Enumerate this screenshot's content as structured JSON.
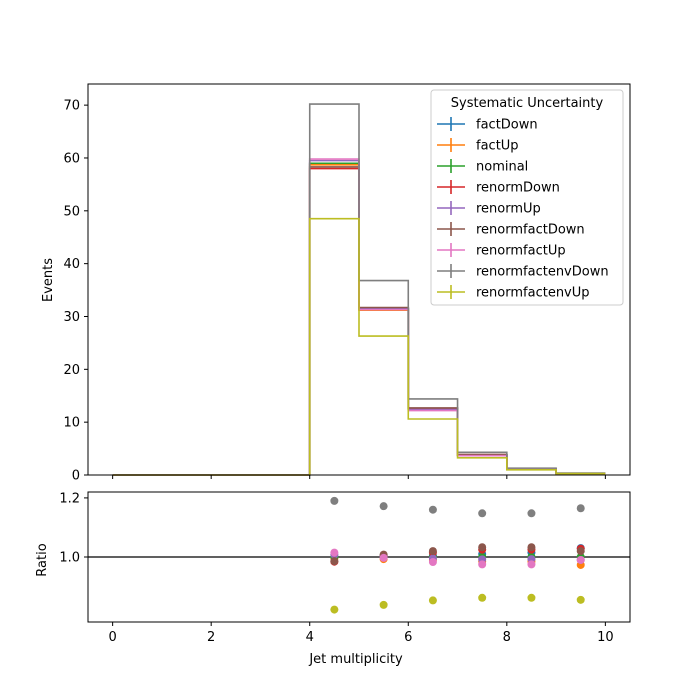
{
  "chart_data": [
    {
      "type": "step-histogram",
      "title": "",
      "xlabel": "",
      "ylabel": "Events",
      "xlim": [
        -0.5,
        10.5
      ],
      "ylim": [
        0,
        74
      ],
      "x_ticks": [
        0,
        2,
        4,
        6,
        8,
        10
      ],
      "y_ticks": [
        0,
        10,
        20,
        30,
        40,
        50,
        60,
        70
      ],
      "bin_edges": [
        0,
        1,
        2,
        3,
        4,
        5,
        6,
        7,
        8,
        9,
        10
      ],
      "legend": {
        "title": "Systematic Uncertainty",
        "position": "upper-right"
      },
      "draw_order": [
        "factDown",
        "factUp",
        "nominal",
        "renormDown",
        "renormUp",
        "renormfactDown",
        "renormfactUp",
        "renormfactenvDown",
        "renormfactenvUp"
      ],
      "series": [
        {
          "name": "factDown",
          "color": "#1f77b4",
          "values": [
            0,
            0,
            0,
            0,
            59.0,
            31.6,
            12.6,
            3.8,
            1.15,
            0.32
          ]
        },
        {
          "name": "factUp",
          "color": "#ff7f0e",
          "values": [
            0,
            0,
            0,
            0,
            58.7,
            31.2,
            12.3,
            3.7,
            1.12,
            0.3
          ]
        },
        {
          "name": "nominal",
          "color": "#2ca02c",
          "values": [
            0,
            0,
            0,
            0,
            59.0,
            31.4,
            12.4,
            3.75,
            1.13,
            0.31
          ]
        },
        {
          "name": "renormDown",
          "color": "#d62728",
          "values": [
            0,
            0,
            0,
            0,
            58.0,
            31.5,
            12.6,
            3.85,
            1.16,
            0.32
          ]
        },
        {
          "name": "renormUp",
          "color": "#9467bd",
          "values": [
            0,
            0,
            0,
            0,
            59.5,
            31.5,
            12.4,
            3.75,
            1.13,
            0.31
          ]
        },
        {
          "name": "renormfactDown",
          "color": "#8c564b",
          "values": [
            0,
            0,
            0,
            0,
            58.3,
            31.7,
            12.7,
            3.88,
            1.17,
            0.32
          ]
        },
        {
          "name": "renormfactUp",
          "color": "#e377c2",
          "values": [
            0,
            0,
            0,
            0,
            59.8,
            31.3,
            12.2,
            3.66,
            1.1,
            0.31
          ]
        },
        {
          "name": "renormfactenvDown",
          "color": "#7f7f7f",
          "values": [
            0,
            0,
            0,
            0,
            70.2,
            36.8,
            14.4,
            4.3,
            1.3,
            0.36
          ]
        },
        {
          "name": "renormfactenvUp",
          "color": "#bcbd22",
          "values": [
            0,
            0,
            0,
            0,
            48.5,
            26.3,
            10.6,
            3.25,
            0.98,
            0.27
          ]
        }
      ]
    },
    {
      "type": "scatter",
      "title": "",
      "xlabel": "Jet multiplicity",
      "ylabel": "Ratio",
      "xlim": [
        -0.5,
        10.5
      ],
      "ylim": [
        0.78,
        1.22
      ],
      "x_ticks": [
        0,
        2,
        4,
        6,
        8,
        10
      ],
      "y_ticks": [
        1.0,
        1.2
      ],
      "y_tick_labels": [
        "1.0",
        "1.2"
      ],
      "reference_line": 1.0,
      "x": [
        4.5,
        5.5,
        6.5,
        7.5,
        8.5,
        9.5
      ],
      "draw_order": [
        "factDown",
        "factUp",
        "nominal",
        "renormDown",
        "renormUp",
        "renormfactDown",
        "renormfactUp",
        "renormfactenvDown",
        "renormfactenvUp"
      ],
      "series": [
        {
          "name": "factDown",
          "color": "#1f77b4",
          "values": [
            1.0,
            1.005,
            1.005,
            1.01,
            1.015,
            1.03
          ]
        },
        {
          "name": "factUp",
          "color": "#ff7f0e",
          "values": [
            0.995,
            0.993,
            0.99,
            0.985,
            0.985,
            0.973
          ]
        },
        {
          "name": "nominal",
          "color": "#2ca02c",
          "values": [
            1.0,
            1.0,
            1.0,
            1.0,
            1.0,
            1.0
          ]
        },
        {
          "name": "renormDown",
          "color": "#d62728",
          "values": [
            0.984,
            1.003,
            1.015,
            1.025,
            1.025,
            1.028
          ]
        },
        {
          "name": "renormUp",
          "color": "#9467bd",
          "values": [
            1.008,
            1.002,
            0.995,
            0.992,
            0.993,
            0.99
          ]
        },
        {
          "name": "renormfactDown",
          "color": "#8c564b",
          "values": [
            0.986,
            1.008,
            1.02,
            1.033,
            1.033,
            1.02
          ]
        },
        {
          "name": "renormfactUp",
          "color": "#e377c2",
          "values": [
            1.015,
            0.997,
            0.983,
            0.975,
            0.975,
            0.99
          ]
        },
        {
          "name": "renormfactenvDown",
          "color": "#7f7f7f",
          "values": [
            1.19,
            1.172,
            1.16,
            1.148,
            1.148,
            1.165
          ]
        },
        {
          "name": "renormfactenvUp",
          "color": "#bcbd22",
          "values": [
            0.822,
            0.838,
            0.853,
            0.862,
            0.862,
            0.855
          ]
        }
      ]
    }
  ]
}
